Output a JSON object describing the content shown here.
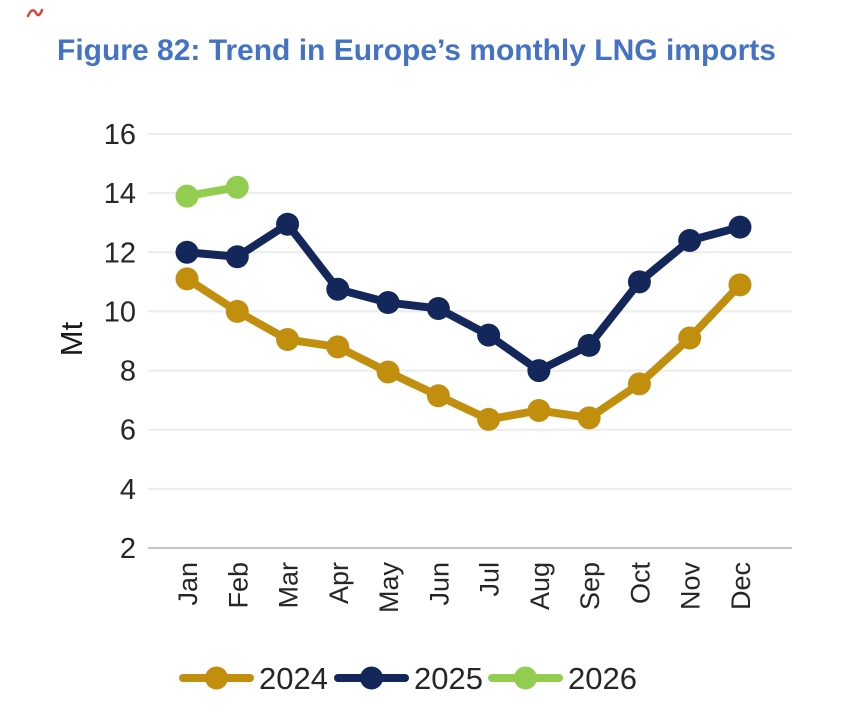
{
  "page": {
    "title": "Figure 82: Trend in Europe’s monthly LNG imports"
  },
  "colors": {
    "title_blue": "#4472C4",
    "axis_text": "#262626",
    "gridline": "#ECECEC",
    "axis_line": "#C6C6C6",
    "series_2024": "#C28E0E",
    "series_2025": "#14275B",
    "series_2026": "#92CD50",
    "corner_mark_red": "#E03C31"
  },
  "chart_data": {
    "type": "line",
    "title": "Figure 82: Trend in Europe’s monthly LNG imports",
    "xlabel": "",
    "ylabel": "Mt",
    "ylim": [
      2,
      16
    ],
    "yticks": [
      2,
      4,
      6,
      8,
      10,
      12,
      14,
      16
    ],
    "grid": true,
    "legend_position": "bottom",
    "categories": [
      "Jan",
      "Feb",
      "Mar",
      "Apr",
      "May",
      "Jun",
      "Jul",
      "Aug",
      "Sep",
      "Oct",
      "Nov",
      "Dec"
    ],
    "series": [
      {
        "name": "2024",
        "color": "#C28E0E",
        "values": [
          11.1,
          10.0,
          9.05,
          8.8,
          7.95,
          7.15,
          6.35,
          6.65,
          6.4,
          7.55,
          9.1,
          10.9
        ]
      },
      {
        "name": "2025",
        "color": "#14275B",
        "values": [
          12.0,
          11.85,
          12.95,
          10.75,
          10.3,
          10.1,
          9.2,
          8.0,
          8.85,
          11.0,
          12.4,
          12.85
        ]
      },
      {
        "name": "2026",
        "color": "#92CD50",
        "values": [
          13.9,
          14.2
        ]
      }
    ]
  }
}
